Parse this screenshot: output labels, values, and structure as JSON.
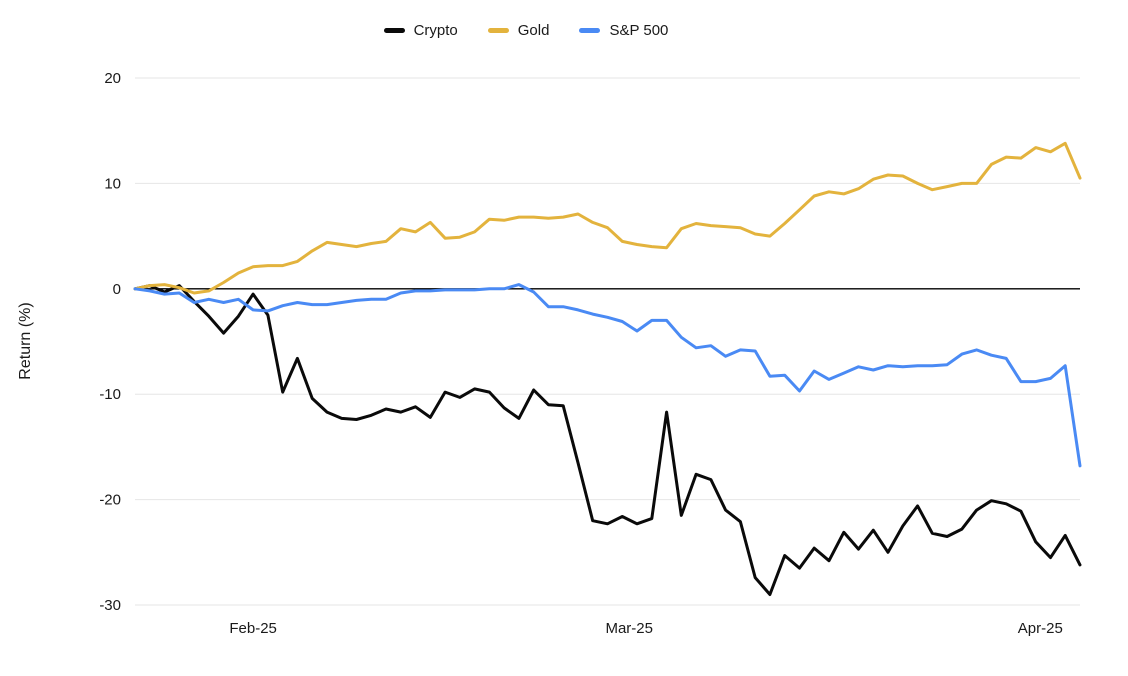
{
  "chart_data": {
    "type": "line",
    "title": "",
    "xlabel": "",
    "ylabel": "Return (%)",
    "ylim": [
      -30,
      20
    ],
    "y_ticks": [
      20,
      10,
      0,
      -10,
      -20,
      -30
    ],
    "x_ticks": [
      {
        "label": "Feb-25",
        "pos": 0.125
      },
      {
        "label": "Mar-25",
        "pos": 0.523
      },
      {
        "label": "Apr-25",
        "pos": 0.958
      }
    ],
    "grid": true,
    "legend_position": "top",
    "background_color": "#ffffff",
    "grid_color": "#e6e6e6",
    "zero_line_color": "#000000",
    "axis_label_color": "#1a1a1a",
    "series": [
      {
        "name": "Crypto",
        "color": "#0a0a0a",
        "values": [
          0,
          0.3,
          -0.3,
          0.3,
          -1.2,
          -2.6,
          -4.2,
          -2.6,
          -0.5,
          -2.5,
          -9.8,
          -6.6,
          -10.4,
          -11.7,
          -12.3,
          -12.4,
          -12.0,
          -11.4,
          -11.7,
          -11.2,
          -12.2,
          -9.8,
          -10.3,
          -9.5,
          -9.8,
          -11.3,
          -12.3,
          -9.6,
          -11.0,
          -11.1,
          -16.5,
          -22.0,
          -22.3,
          -21.6,
          -22.3,
          -21.8,
          -11.7,
          -21.5,
          -17.6,
          -18.1,
          -21.0,
          -22.1,
          -27.4,
          -29.0,
          -25.3,
          -26.5,
          -24.6,
          -25.8,
          -23.1,
          -24.7,
          -22.9,
          -25.0,
          -22.5,
          -20.6,
          -23.2,
          -23.5,
          -22.8,
          -21.0,
          -20.1,
          -20.4,
          -21.1,
          -24.0,
          -25.5,
          -23.4,
          -26.2
        ]
      },
      {
        "name": "Gold",
        "color": "#e3b33d",
        "values": [
          0,
          0.3,
          0.4,
          0.1,
          -0.4,
          -0.2,
          0.6,
          1.5,
          2.1,
          2.2,
          2.2,
          2.6,
          3.6,
          4.4,
          4.2,
          4.0,
          4.3,
          4.5,
          5.7,
          5.4,
          6.3,
          4.8,
          4.9,
          5.4,
          6.6,
          6.5,
          6.8,
          6.8,
          6.7,
          6.8,
          7.1,
          6.3,
          5.8,
          4.5,
          4.2,
          4.0,
          3.9,
          5.7,
          6.2,
          6.0,
          5.9,
          5.8,
          5.2,
          5.0,
          6.2,
          7.5,
          8.8,
          9.2,
          9.0,
          9.5,
          10.4,
          10.8,
          10.7,
          10.0,
          9.4,
          9.7,
          10.0,
          10.0,
          11.8,
          12.5,
          12.4,
          13.4,
          13.0,
          13.8,
          10.5
        ]
      },
      {
        "name": "S&P 500",
        "color": "#4a8af4",
        "values": [
          0,
          -0.2,
          -0.5,
          -0.4,
          -1.3,
          -1.0,
          -1.3,
          -1.0,
          -2.0,
          -2.1,
          -1.6,
          -1.3,
          -1.5,
          -1.5,
          -1.3,
          -1.1,
          -1.0,
          -1.0,
          -0.4,
          -0.2,
          -0.2,
          -0.1,
          -0.1,
          -0.1,
          0.0,
          0.0,
          0.4,
          -0.3,
          -1.7,
          -1.7,
          -2.0,
          -2.4,
          -2.7,
          -3.1,
          -4.0,
          -3.0,
          -3.0,
          -4.6,
          -5.6,
          -5.4,
          -6.4,
          -5.8,
          -5.9,
          -8.3,
          -8.2,
          -9.7,
          -7.8,
          -8.6,
          -8.0,
          -7.4,
          -7.7,
          -7.3,
          -7.4,
          -7.3,
          -7.3,
          -7.2,
          -6.2,
          -5.8,
          -6.3,
          -6.6,
          -8.8,
          -8.8,
          -8.5,
          -7.3,
          -16.8
        ]
      }
    ]
  }
}
